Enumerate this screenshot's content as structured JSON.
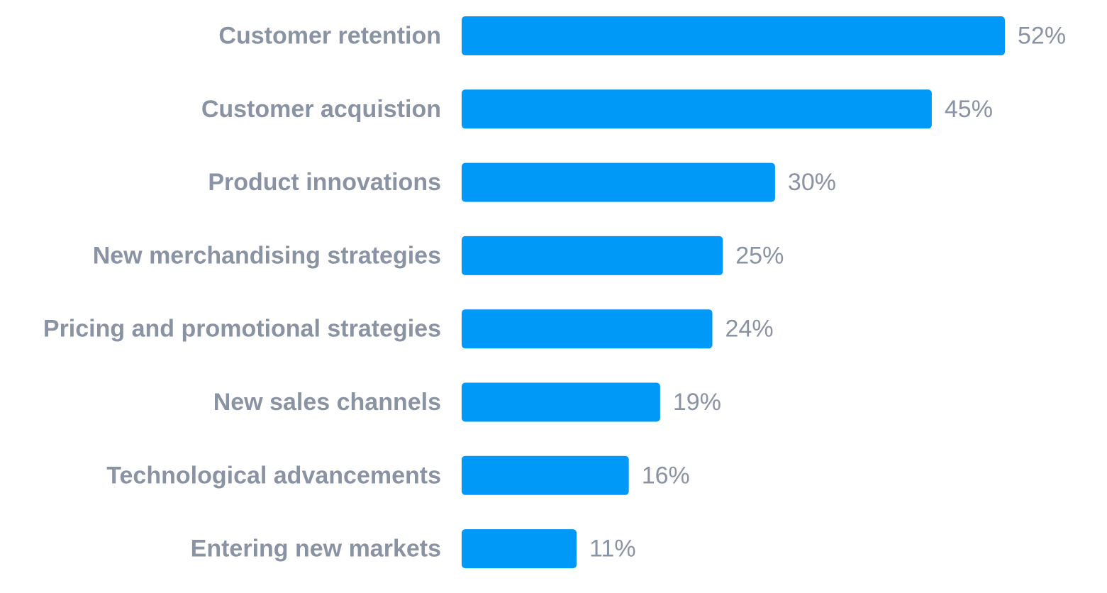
{
  "chart_data": {
    "type": "bar",
    "orientation": "horizontal",
    "categories": [
      "Customer retention",
      "Customer acquistion",
      "Product innovations",
      "New merchandising strategies",
      "Pricing and promotional strategies",
      "New sales channels",
      "Technological advancements",
      "Entering new markets"
    ],
    "values": [
      52,
      45,
      30,
      25,
      24,
      19,
      16,
      11
    ],
    "value_labels": [
      "52%",
      "45%",
      "30%",
      "25%",
      "24%",
      "19%",
      "16%",
      "11%"
    ],
    "unit": "%",
    "xlim": [
      0,
      52
    ],
    "grid": false,
    "legend": "none",
    "bar_color": "#0099f7",
    "label_color": "#8a93a3"
  }
}
